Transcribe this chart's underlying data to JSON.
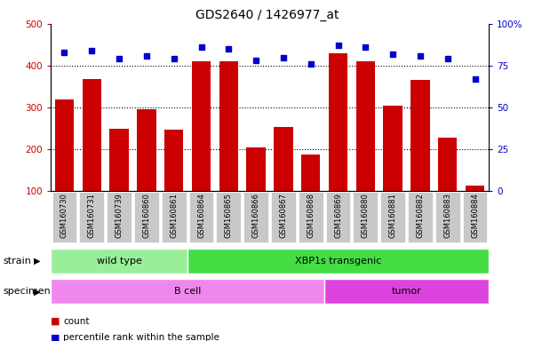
{
  "title": "GDS2640 / 1426977_at",
  "samples": [
    "GSM160730",
    "GSM160731",
    "GSM160739",
    "GSM160860",
    "GSM160861",
    "GSM160864",
    "GSM160865",
    "GSM160866",
    "GSM160867",
    "GSM160868",
    "GSM160869",
    "GSM160880",
    "GSM160881",
    "GSM160882",
    "GSM160883",
    "GSM160884"
  ],
  "counts": [
    320,
    367,
    248,
    295,
    247,
    410,
    410,
    205,
    253,
    187,
    430,
    410,
    305,
    365,
    228,
    113
  ],
  "percentiles": [
    83,
    84,
    79,
    81,
    79,
    86,
    85,
    78,
    80,
    76,
    87,
    86,
    82,
    81,
    79,
    67
  ],
  "ymin": 100,
  "ymax": 500,
  "yticks_left": [
    100,
    200,
    300,
    400,
    500
  ],
  "yticks_right": [
    0,
    25,
    50,
    75,
    100
  ],
  "bar_color": "#cc0000",
  "dot_color": "#0000cc",
  "grid_color": "#000000",
  "strain_groups": [
    {
      "label": "wild type",
      "start": 0,
      "end": 5,
      "color": "#99ee99"
    },
    {
      "label": "XBP1s transgenic",
      "start": 5,
      "end": 16,
      "color": "#44dd44"
    }
  ],
  "specimen_groups": [
    {
      "label": "B cell",
      "start": 0,
      "end": 10,
      "color": "#ee88ee"
    },
    {
      "label": "tumor",
      "start": 10,
      "end": 16,
      "color": "#dd44dd"
    }
  ],
  "strain_label": "strain",
  "specimen_label": "specimen",
  "legend_count": "count",
  "legend_percentile": "percentile rank within the sample",
  "background_color": "#ffffff",
  "tick_bg_color": "#c8c8c8"
}
